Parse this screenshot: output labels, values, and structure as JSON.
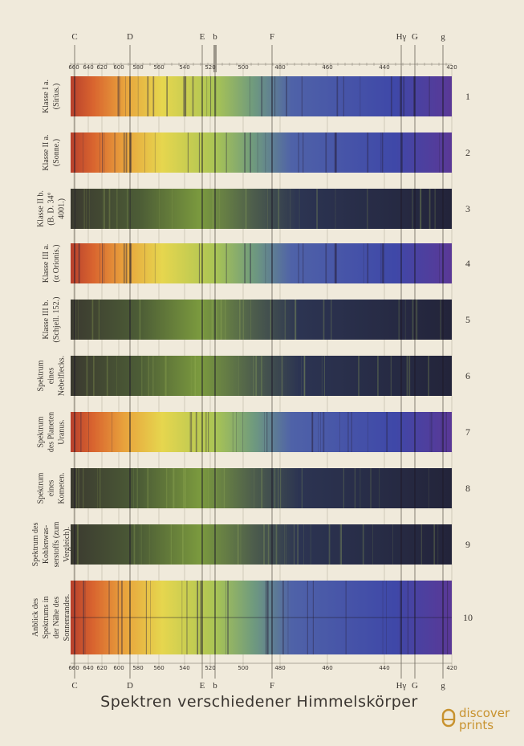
{
  "top_lines": [
    "C",
    "D",
    "E",
    "b",
    "F",
    "Hγ",
    "G",
    "g"
  ],
  "scale": [
    "660",
    "640",
    "620",
    "600",
    "580",
    "560",
    "540",
    "520",
    "500",
    "480",
    "460",
    "440",
    "420"
  ],
  "rows": [
    {
      "label": [
        "Klasse I a.",
        "(Sirius.)"
      ],
      "number": "1"
    },
    {
      "label": [
        "Klasse II a.",
        "(Sonne.)"
      ],
      "number": "2"
    },
    {
      "label": [
        "Klasse II b.",
        "(B. D. 34°",
        "4001.)"
      ],
      "number": "3"
    },
    {
      "label": [
        "Klasse III a.",
        "(α Orionis.)"
      ],
      "number": "4"
    },
    {
      "label": [
        "Klasse III b.",
        "(Schjell. 152.)"
      ],
      "number": "5"
    },
    {
      "label": [
        "Spektrum",
        "eines",
        "Nebelflecks."
      ],
      "number": "6"
    },
    {
      "label": [
        "Spektrum",
        "des Planeten",
        "Uranus."
      ],
      "number": "7"
    },
    {
      "label": [
        "Spektrum",
        "eines",
        "Kometen."
      ],
      "number": "8"
    },
    {
      "label": [
        "Spektrum des",
        "Kohlenwas-",
        "serstoffs (zum",
        "Vergleich)."
      ],
      "number": "9"
    },
    {
      "label": [
        "Anblick des",
        "Spektrums in",
        "der Nähe des",
        "Sonnenrandes."
      ],
      "number": "10"
    }
  ],
  "title": "Spektren verschiedener Himmelskörper",
  "brand": [
    "discover",
    "prints"
  ]
}
